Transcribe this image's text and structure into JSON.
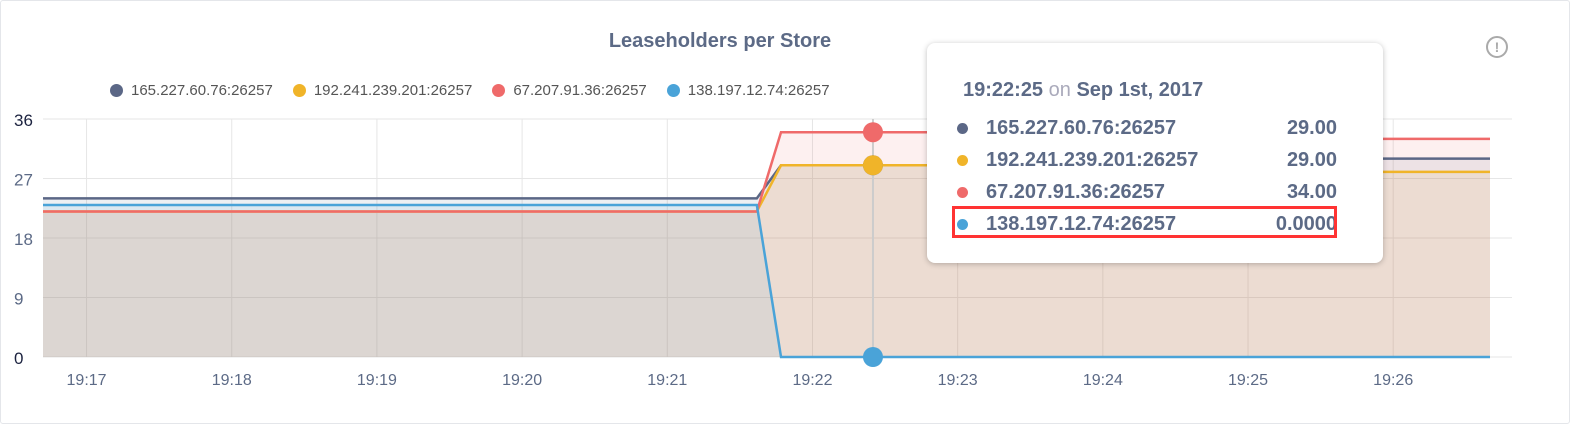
{
  "chart_data": {
    "type": "area",
    "title": "Leaseholders per Store",
    "xlabel": "",
    "ylabel": "",
    "ylim": [
      0,
      36
    ],
    "yticks": [
      0,
      9,
      18,
      27,
      36
    ],
    "xticks": [
      "19:17",
      "19:18",
      "19:19",
      "19:20",
      "19:21",
      "19:22",
      "19:23",
      "19:24",
      "19:25",
      "19:26"
    ],
    "xlim": [
      "19:16:42",
      "19:26:40"
    ],
    "grid": true,
    "legend": "top",
    "series": [
      {
        "name": "165.227.60.76:26257",
        "color": "#5b6786",
        "points": [
          [
            "19:16:42",
            24
          ],
          [
            "19:21:37",
            24
          ],
          [
            "19:21:47",
            29
          ],
          [
            "19:23:50",
            29
          ],
          [
            "19:24:00",
            30
          ],
          [
            "19:26:40",
            30
          ]
        ]
      },
      {
        "name": "192.241.239.201:26257",
        "color": "#f0b429",
        "points": [
          [
            "19:16:42",
            22
          ],
          [
            "19:21:37",
            22
          ],
          [
            "19:21:47",
            29
          ],
          [
            "19:23:50",
            29
          ],
          [
            "19:24:00",
            28
          ],
          [
            "19:26:40",
            28
          ]
        ]
      },
      {
        "name": "67.207.91.36:26257",
        "color": "#ef6a6a",
        "points": [
          [
            "19:16:42",
            22
          ],
          [
            "19:21:37",
            22
          ],
          [
            "19:21:47",
            34
          ],
          [
            "19:23:50",
            34
          ],
          [
            "19:24:00",
            33
          ],
          [
            "19:26:40",
            33
          ]
        ]
      },
      {
        "name": "138.197.12.74:26257",
        "color": "#4aa3d8",
        "points": [
          [
            "19:16:42",
            23
          ],
          [
            "19:21:37",
            23
          ],
          [
            "19:21:47",
            0
          ],
          [
            "19:26:40",
            0
          ]
        ]
      }
    ]
  },
  "tooltip": {
    "time": "19:22:25",
    "on": "on",
    "date": "Sep 1st, 2017",
    "rows": [
      {
        "name": "165.227.60.76:26257",
        "value": "29.00"
      },
      {
        "name": "192.241.239.201:26257",
        "value": "29.00"
      },
      {
        "name": "67.207.91.36:26257",
        "value": "34.00"
      },
      {
        "name": "138.197.12.74:26257",
        "value": "0.0000"
      }
    ],
    "highlighted_row": 3
  },
  "hover_time": "19:22:25",
  "info_icon": "info-circle-icon"
}
